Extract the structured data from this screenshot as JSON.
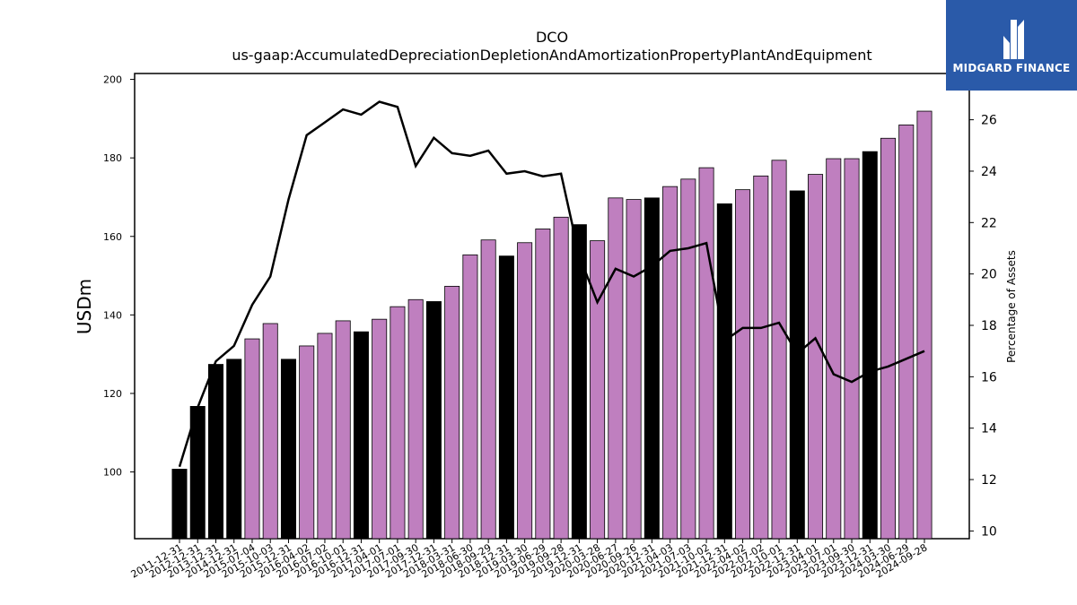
{
  "chart_data": {
    "type": "bar",
    "title": "DCO",
    "subtitle": "us-gaap:AccumulatedDepreciationDepletionAndAmortizationPropertyPlantAndEquipment",
    "ylabel": "USDm",
    "ylabel_right": "Percentage of Assets",
    "ylim": [
      83,
      201.5
    ],
    "ylim_right": [
      9.7,
      27.8
    ],
    "yticks": [
      100,
      120,
      140,
      160,
      180,
      200
    ],
    "yticks_right": [
      10,
      12,
      14,
      16,
      18,
      20,
      22,
      24,
      26
    ],
    "categories": [
      "2011-12-31",
      "2012-12-31",
      "2013-12-31",
      "2014-12-31",
      "2015-07-04",
      "2015-10-03",
      "2015-12-31",
      "2016-04-02",
      "2016-07-02",
      "2016-10-01",
      "2016-12-31",
      "2017-04-01",
      "2017-07-01",
      "2017-09-30",
      "2017-12-31",
      "2018-03-31",
      "2018-06-30",
      "2018-09-29",
      "2018-12-31",
      "2019-03-30",
      "2019-06-29",
      "2019-09-28",
      "2019-12-31",
      "2020-03-28",
      "2020-06-27",
      "2020-09-26",
      "2020-12-31",
      "2021-04-03",
      "2021-07-03",
      "2021-10-02",
      "2021-12-31",
      "2022-04-02",
      "2022-07-02",
      "2022-10-01",
      "2022-12-31",
      "2023-04-01",
      "2023-07-01",
      "2023-09-30",
      "2023-12-31",
      "2024-03-30",
      "2024-06-29",
      "2024-09-28"
    ],
    "series": [
      {
        "values": [
          100.7,
          116.7,
          127.4,
          128.7,
          133.9,
          137.8,
          128.7,
          132.1,
          135.3,
          138.5,
          135.7,
          138.9,
          142.1,
          143.9,
          143.4,
          147.3,
          155.3,
          159.1,
          155.0,
          158.4,
          161.9,
          164.9,
          163.0,
          158.9,
          169.8,
          169.4,
          169.8,
          172.7,
          174.6,
          177.5,
          168.3,
          171.9,
          175.4,
          179.4,
          171.6,
          175.8,
          179.8,
          179.8,
          181.6,
          185.0,
          188.4,
          191.9
        ]
      },
      {
        "values": [
          12.5,
          14.8,
          16.6,
          17.2,
          18.8,
          19.9,
          22.9,
          25.4,
          25.9,
          26.4,
          26.2,
          26.7,
          26.5,
          24.2,
          25.3,
          24.7,
          24.6,
          24.8,
          23.9,
          24.0,
          23.8,
          23.9,
          20.7,
          18.9,
          20.2,
          19.9,
          20.3,
          20.9,
          21.0,
          21.2,
          17.4,
          17.9,
          17.9,
          18.1,
          16.9,
          17.5,
          16.1,
          15.8,
          16.2,
          16.4,
          16.7,
          17.0
        ]
      }
    ],
    "year_end_flags": [
      true,
      true,
      true,
      true,
      false,
      false,
      true,
      false,
      false,
      false,
      true,
      false,
      false,
      false,
      true,
      false,
      false,
      false,
      true,
      false,
      false,
      false,
      true,
      false,
      false,
      false,
      true,
      false,
      false,
      false,
      true,
      false,
      false,
      false,
      true,
      false,
      false,
      false,
      true,
      false,
      false,
      false
    ],
    "colors": {
      "bar_year_end": "#000000",
      "bar_interim": "#bf7fbf",
      "line": "#000000"
    }
  },
  "logo": {
    "text": "MIDGARD FINANCE",
    "color": "#2a5aa9"
  }
}
